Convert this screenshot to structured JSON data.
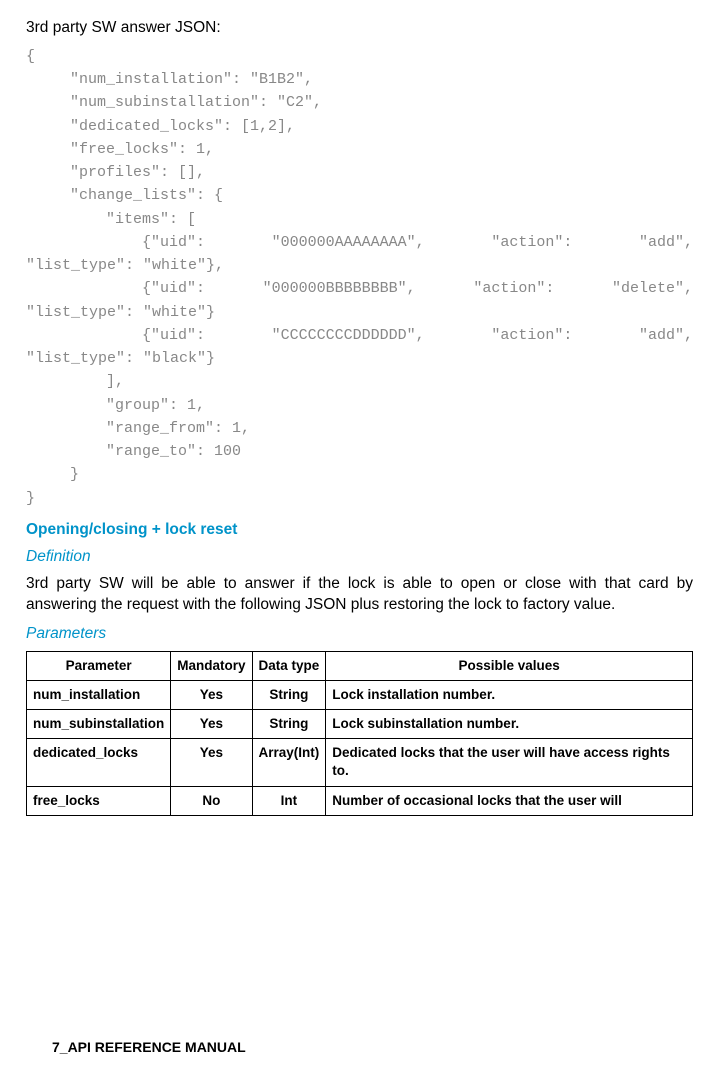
{
  "intro": "3rd party SW answer JSON:",
  "json_lines": [
    {
      "cls": "",
      "t": "{"
    },
    {
      "cls": "pad1",
      "t": "\"num_installation\": \"B1B2\","
    },
    {
      "cls": "pad1",
      "t": "\"num_subinstallation\": \"C2\","
    },
    {
      "cls": "pad1",
      "t": "\"dedicated_locks\": [1,2],"
    },
    {
      "cls": "pad1",
      "t": "\"free_locks\": 1,"
    },
    {
      "cls": "pad1",
      "t": "\"profiles\": [],"
    },
    {
      "cls": "pad1",
      "t": "\"change_lists\": {"
    },
    {
      "cls": "pad2",
      "t": "\"items\": ["
    },
    {
      "cls": "pad3 just",
      "t": "{\"uid\": \"000000AAAAAAAA\", \"action\": \"add\","
    },
    {
      "cls": "cont",
      "t": "\"list_type\": \"white\"},"
    },
    {
      "cls": "pad3 just",
      "t": "{\"uid\": \"000000BBBBBBBB\", \"action\": \"delete\","
    },
    {
      "cls": "cont",
      "t": "\"list_type\": \"white\"}"
    },
    {
      "cls": "pad3 just",
      "t": "{\"uid\": \"CCCCCCCCDDDDDD\", \"action\": \"add\","
    },
    {
      "cls": "cont",
      "t": "\"list_type\": \"black\"}"
    },
    {
      "cls": "pad2",
      "t": "],"
    },
    {
      "cls": "pad2",
      "t": "\"group\": 1,"
    },
    {
      "cls": "pad2",
      "t": "\"range_from\": 1,"
    },
    {
      "cls": "pad2",
      "t": "\"range_to\": 100"
    },
    {
      "cls": "pad1",
      "t": "}"
    },
    {
      "cls": "",
      "t": "}"
    }
  ],
  "section_heading": "Opening/closing + lock reset",
  "definition_label": "Definition",
  "definition_text": "3rd party SW will be able to answer if the lock is able to open or close with that card by answering the request with the following JSON plus restoring the lock to factory value.",
  "parameters_label": "Parameters",
  "table": {
    "headers": [
      "Parameter",
      "Mandatory",
      "Data type",
      "Possible values"
    ],
    "rows": [
      {
        "p": "num_installation",
        "m": "Yes",
        "d": "String",
        "v": "Lock installation number."
      },
      {
        "p": "num_subinstallation",
        "m": "Yes",
        "d": "String",
        "v": "Lock subinstallation number."
      },
      {
        "p": "dedicated_locks",
        "m": "Yes",
        "d": "Array(Int)",
        "v": "Dedicated locks that the user will have access rights to."
      },
      {
        "p": "free_locks",
        "m": "No",
        "d": "Int",
        "v": "Number of occasional locks that the user will"
      }
    ]
  },
  "footer": "7_API REFERENCE MANUAL",
  "colors": {
    "accent": "#0093c9",
    "code": "#888888"
  }
}
